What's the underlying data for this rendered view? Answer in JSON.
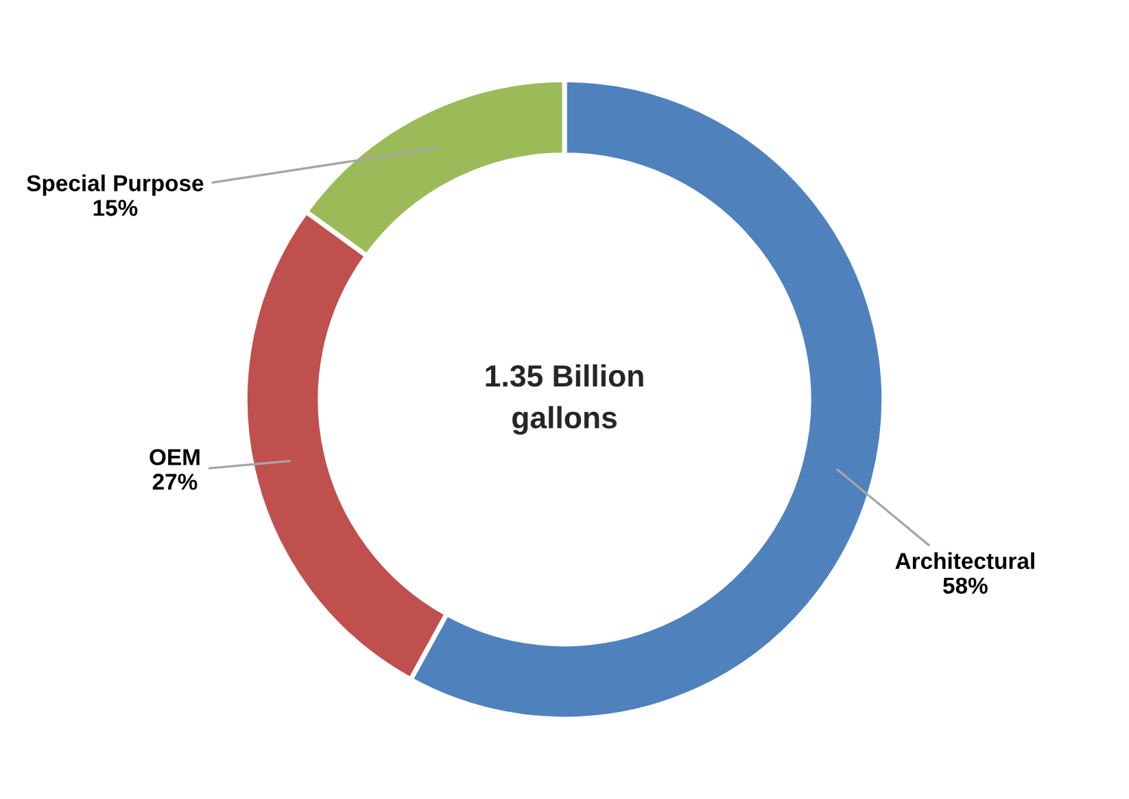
{
  "chart_data": {
    "type": "donut",
    "categories": [
      "Architectural",
      "OEM",
      "Special Purpose"
    ],
    "values": [
      58,
      27,
      15
    ],
    "value_labels": [
      "58%",
      "27%",
      "15%"
    ],
    "colors": [
      "#4f81bd",
      "#c0504d",
      "#9bbb59"
    ],
    "annotations": [
      "1.35 Billion\ngallons"
    ],
    "legend": false
  }
}
